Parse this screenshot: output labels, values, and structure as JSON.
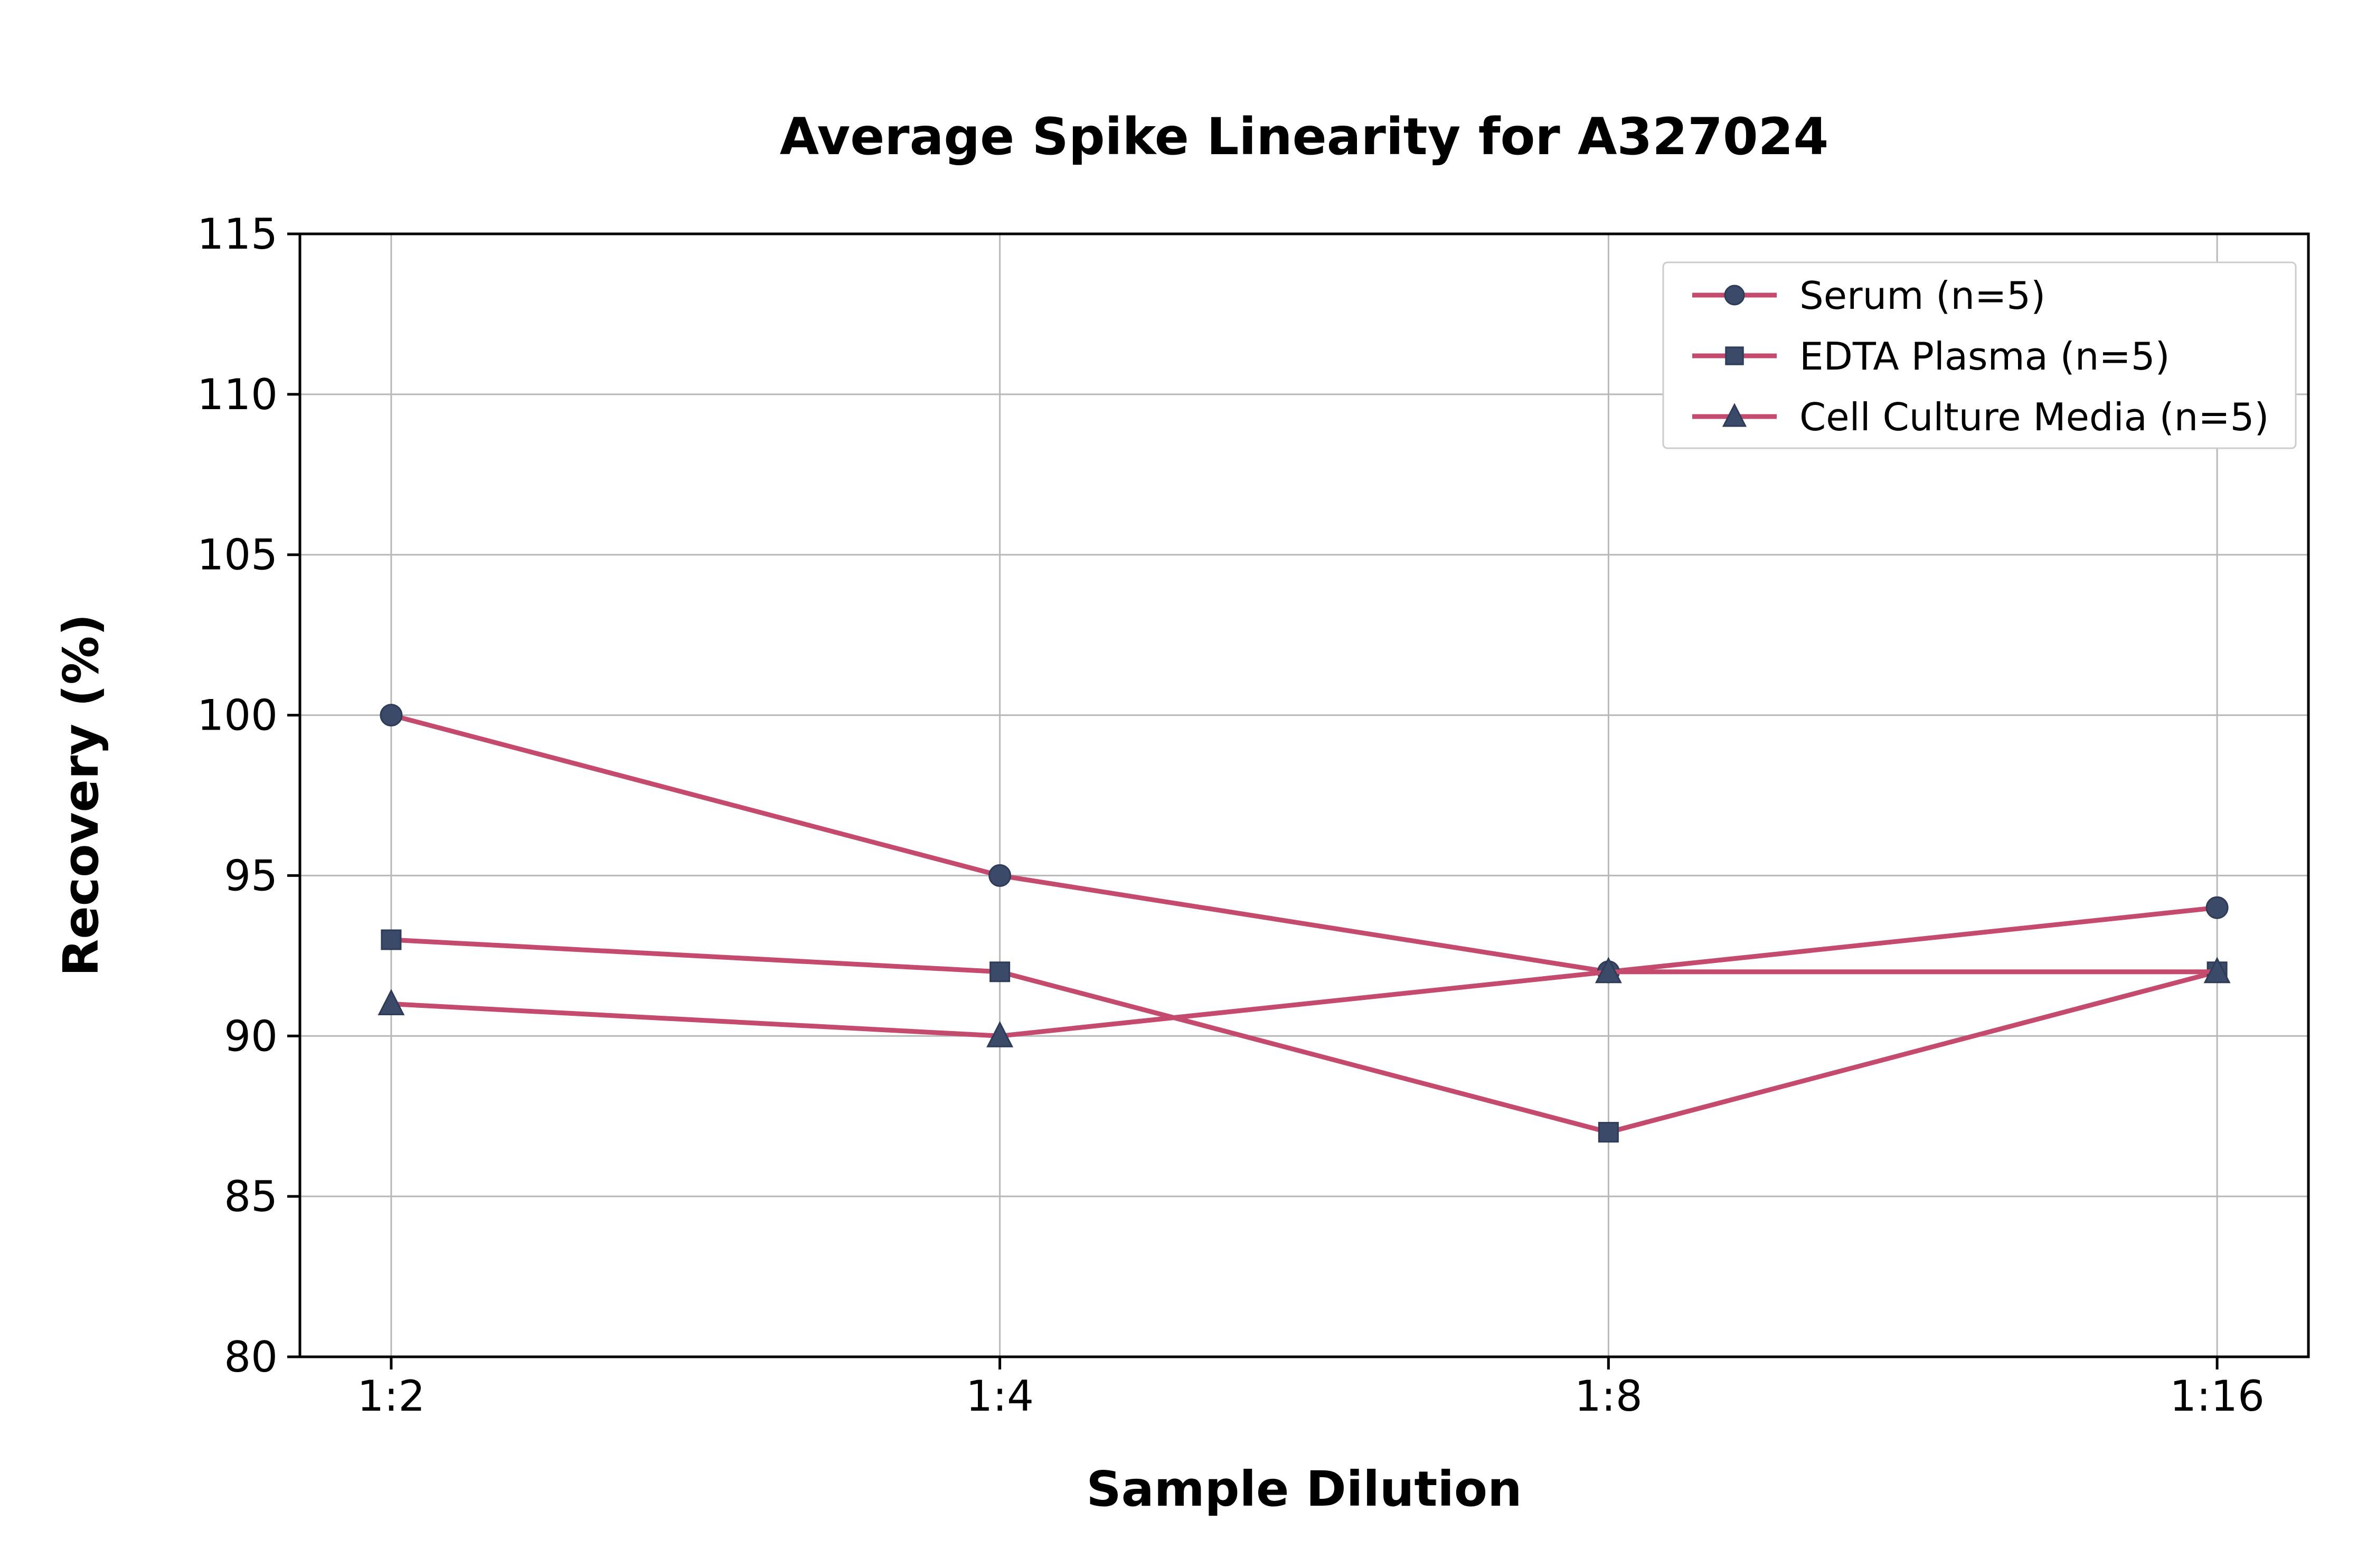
{
  "chart_data": {
    "type": "line",
    "title": "Average Spike Linearity for A327024",
    "xlabel": "Sample Dilution",
    "ylabel": "Recovery (%)",
    "categories": [
      "1:2",
      "1:4",
      "1:8",
      "1:16"
    ],
    "series": [
      {
        "name": "Serum (n=5)",
        "marker": "circle",
        "values": [
          100,
          95,
          92,
          94
        ]
      },
      {
        "name": "EDTA Plasma (n=5)",
        "marker": "square",
        "values": [
          93,
          92,
          87,
          92
        ]
      },
      {
        "name": "Cell Culture Media (n=5)",
        "marker": "triangle",
        "values": [
          91,
          90,
          92,
          92
        ]
      }
    ],
    "ylim": [
      80,
      115
    ],
    "yticks": [
      80,
      85,
      90,
      95,
      100,
      105,
      110,
      115
    ],
    "grid": true,
    "legend_position": "upper right",
    "colors": {
      "line": "#c44a6e",
      "marker_fill": "#3b4a68",
      "marker_edge": "#2e3c58",
      "grid": "#b8b8b8",
      "axis": "#000000",
      "legend_border": "#cccccc",
      "background": "#ffffff"
    }
  }
}
